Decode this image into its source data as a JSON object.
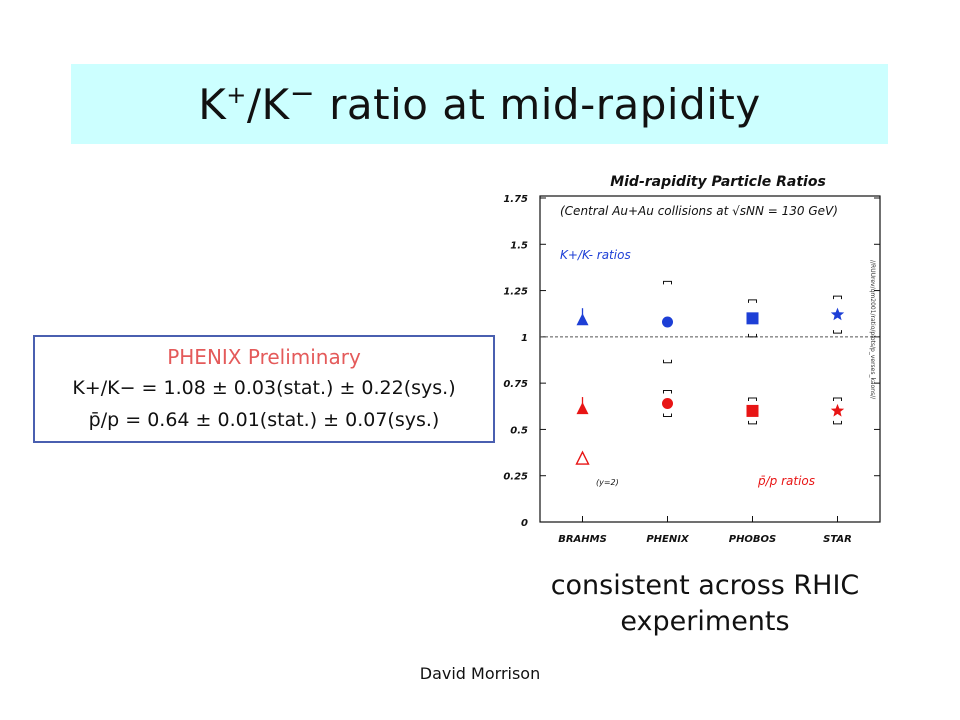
{
  "slide": {
    "title": "K+/K− ratio at mid-rapidity",
    "title_parts": {
      "k1": "K",
      "plus": "+",
      "slash": "/K",
      "minus": "−",
      "rest": " ratio at mid-rapidity"
    },
    "result_box": {
      "header": "PHENIX Preliminary",
      "line1": "K+/K− = 1.08 ± 0.03(stat.) ± 0.22(sys.)",
      "line2": "p̄/p = 0.64 ± 0.01(stat.) ± 0.07(sys.)"
    },
    "caption": "consistent across RHIC experiments",
    "footer": "David Morrison"
  },
  "colors": {
    "title_bg": "#ccffff",
    "box_border": "#4a5fb0",
    "header_red": "#e45a5a",
    "kaon_blue": "#1d3fd6",
    "proton_red": "#e81515"
  },
  "chart_data": {
    "type": "scatter",
    "title": "Mid-rapidity Particle Ratios",
    "subtitle": "(Central Au+Au collisions at √sNN = 130 GeV)",
    "categories": [
      "BRAHMS",
      "PHENIX",
      "PHOBOS",
      "STAR"
    ],
    "y_ticks": [
      "0",
      "0.25",
      "0.5",
      "0.75",
      "1",
      "1.25",
      "1.5",
      "1.75"
    ],
    "ylim": [
      0,
      1.75
    ],
    "reference_line": 1,
    "side_label": "//RUUrev/qm2001/ratio/plots/p_verses_kaons//",
    "series": [
      {
        "name": "K+/K- ratios",
        "color": "#1d3fd6",
        "markers": [
          "triangle",
          "circle",
          "square",
          "star"
        ],
        "values": [
          1.09,
          1.08,
          1.1,
          1.12
        ],
        "sys_brackets": [
          false,
          true,
          true,
          true
        ],
        "sys_err": [
          0,
          0.22,
          0.1,
          0.1
        ]
      },
      {
        "name": "p̄/p ratios",
        "color": "#e81515",
        "markers": [
          "triangle",
          "circle",
          "square",
          "star"
        ],
        "values": [
          0.61,
          0.64,
          0.6,
          0.6
        ],
        "sys_brackets": [
          false,
          true,
          true,
          true
        ],
        "sys_err": [
          0,
          0.07,
          0.07,
          0.07
        ]
      },
      {
        "name": "(y=2)",
        "color": "#e81515",
        "markers": [
          "triangle-open"
        ],
        "category_index": 0,
        "values": [
          0.34
        ]
      }
    ],
    "legend": {
      "kaon": "K+/K- ratios",
      "proton": "p̄/p ratios",
      "y2_note": "(y=2)"
    }
  }
}
